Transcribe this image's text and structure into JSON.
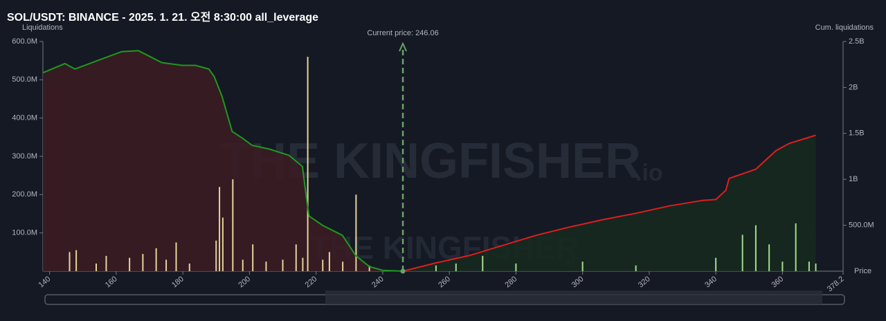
{
  "chart_data": {
    "type": "liquidation",
    "title": "SOL/USDT: BINANCE - 2025. 1. 21. 오전 8:30:00 all_leverage",
    "y_label": "Liquidations",
    "y2_label": "Cum. liquidations",
    "x_label": "Price",
    "watermark": [
      "THE KINGFISHER",
      ".io"
    ],
    "current_price": {
      "value": 246.06,
      "label": "Current price: 246.06"
    },
    "xlim": [
      138,
      378.2
    ],
    "xticks": [
      140,
      160,
      180,
      200,
      220,
      240,
      260,
      280,
      300,
      320,
      340,
      360,
      378.2
    ],
    "ylim": [
      0,
      600000000
    ],
    "yticks": [
      {
        "value": 100000000,
        "label": "100.0M"
      },
      {
        "value": 200000000,
        "label": "200.0M"
      },
      {
        "value": 300000000,
        "label": "300.0M"
      },
      {
        "value": 400000000,
        "label": "400.0M"
      },
      {
        "value": 500000000,
        "label": "500.0M"
      },
      {
        "value": 600000000,
        "label": "600.0M"
      }
    ],
    "y2lim": [
      0,
      2500000000
    ],
    "y2ticks": [
      {
        "value": 500000000,
        "label": "500.0M"
      },
      {
        "value": 1000000000,
        "label": "1B"
      },
      {
        "value": 1500000000,
        "label": "1.5B"
      },
      {
        "value": 2000000000,
        "label": "2B"
      },
      {
        "value": 2500000000,
        "label": "2.5B"
      }
    ],
    "series": [
      {
        "color": "#e6d59a",
        "x": [
          146,
          148,
          154,
          157,
          164,
          168,
          172,
          175,
          178,
          182,
          190,
          191,
          192,
          195,
          198,
          201,
          205,
          210,
          214,
          216,
          217.5,
          222,
          224,
          228,
          232,
          236
        ],
        "values": [
          50000000,
          55000000,
          20000000,
          40000000,
          35000000,
          45000000,
          60000000,
          30000000,
          75000000,
          20000000,
          80000000,
          220000000,
          140000000,
          240000000,
          30000000,
          70000000,
          25000000,
          30000000,
          70000000,
          35000000,
          560000000,
          30000000,
          50000000,
          25000000,
          200000000,
          15000000
        ]
      },
      {
        "color": "#a8dc8e",
        "x": [
          256,
          262,
          270,
          280,
          300,
          316,
          340,
          348,
          352,
          356,
          360,
          364,
          368,
          370
        ],
        "values": [
          15000000,
          20000000,
          40000000,
          20000000,
          25000000,
          15000000,
          35000000,
          95000000,
          120000000,
          70000000,
          25000000,
          125000000,
          25000000,
          20000000
        ]
      }
    ],
    "cum_series": [
      {
        "color": "#1e9a1e",
        "fill": "#3a1c23",
        "x": [
          138,
          144.6,
          147.6,
          155.7,
          161.7,
          166.7,
          173.7,
          179.8,
          183.8,
          187.8,
          189.4,
          191.8,
          194.8,
          197.8,
          200.8,
          205.9,
          211.9,
          215.9,
          217.5,
          217.9,
          221.9,
          227.9,
          231.9,
          236,
          240,
          246.06
        ],
        "values": [
          2160000000,
          2260000000,
          2200000000,
          2310000000,
          2390000000,
          2400000000,
          2270000000,
          2240000000,
          2240000000,
          2200000000,
          2120000000,
          1900000000,
          1520000000,
          1450000000,
          1370000000,
          1330000000,
          1260000000,
          1140000000,
          690000000,
          600000000,
          500000000,
          390000000,
          170000000,
          50000000,
          10000000,
          0
        ]
      },
      {
        "color": "#e01e1e",
        "fill": "#16291f",
        "x": [
          246.06,
          256,
          266,
          276,
          286,
          296,
          306,
          316,
          326,
          336,
          340,
          343,
          344,
          352,
          358,
          362,
          370
        ],
        "values": [
          0,
          90000000,
          170000000,
          280000000,
          390000000,
          480000000,
          560000000,
          630000000,
          710000000,
          770000000,
          780000000,
          880000000,
          1010000000,
          1110000000,
          1310000000,
          1390000000,
          1480000000
        ]
      }
    ]
  }
}
